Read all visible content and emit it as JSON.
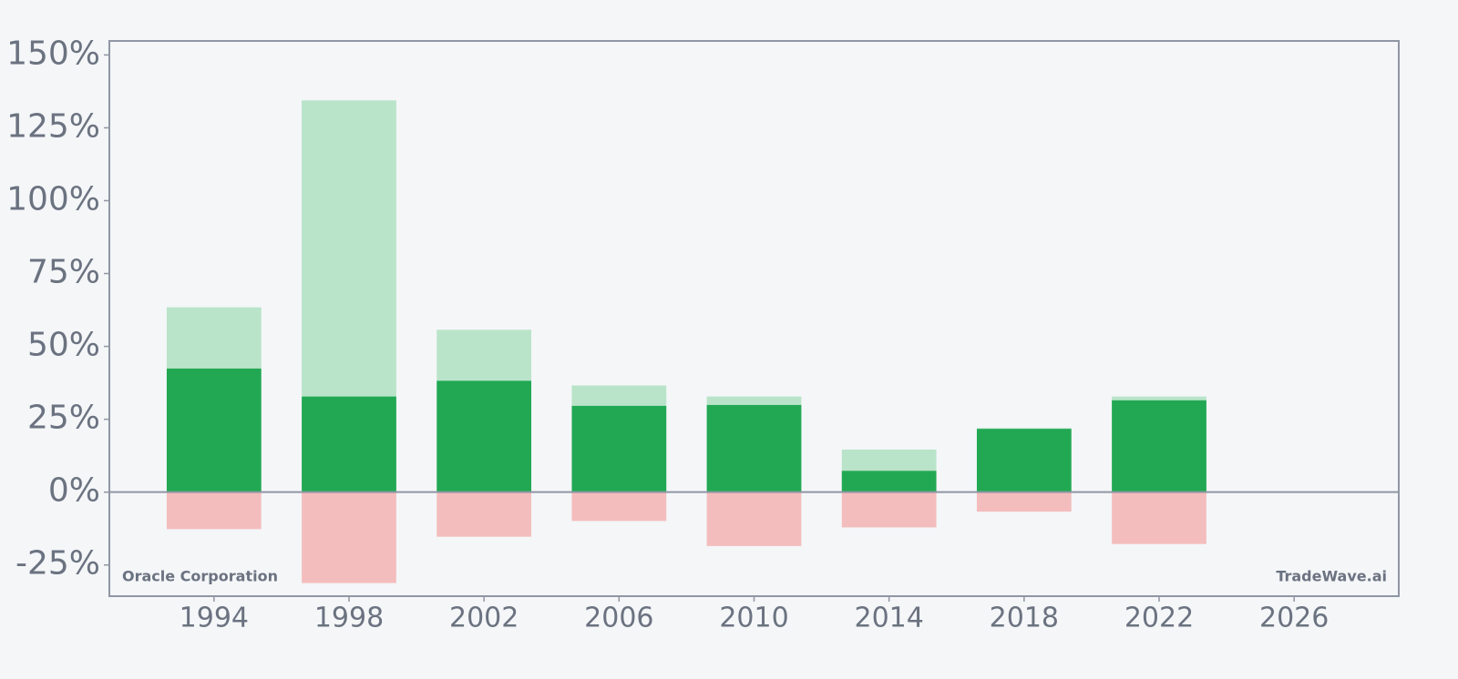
{
  "chart_data": {
    "type": "bar",
    "x": [
      1994,
      1998,
      2002,
      2006,
      2010,
      2014,
      2018,
      2022
    ],
    "series": [
      {
        "color": "#b9e4c9",
        "values": [
          63.4,
          134.4,
          55.7,
          36.6,
          32.8,
          14.6,
          22.0,
          32.8
        ]
      },
      {
        "color": "#22a853",
        "values": [
          42.4,
          32.8,
          38.2,
          29.6,
          29.9,
          7.3,
          21.7,
          31.5
        ]
      },
      {
        "color": "#f4bdbd",
        "values": [
          -12.7,
          -31.2,
          -15.3,
          -9.9,
          -18.5,
          -12.1,
          -6.7,
          -17.8
        ]
      }
    ],
    "xlim": [
      1990.9,
      2029.1
    ],
    "xticks": [
      1994,
      1998,
      2002,
      2006,
      2010,
      2014,
      2018,
      2022,
      2026
    ],
    "ylim": [
      -35.7,
      154.8
    ],
    "yticks": [
      {
        "value": -25,
        "label": "-25%"
      },
      {
        "value": 0,
        "label": "0%"
      },
      {
        "value": 25,
        "label": "25%"
      },
      {
        "value": 50,
        "label": "50%"
      },
      {
        "value": 75,
        "label": "75%"
      },
      {
        "value": 100,
        "label": "100%"
      },
      {
        "value": 125,
        "label": "125%"
      },
      {
        "value": 150,
        "label": "150%"
      }
    ],
    "grid": false,
    "annotations": [
      "Oracle Corporation",
      "TradeWave.ai"
    ]
  }
}
